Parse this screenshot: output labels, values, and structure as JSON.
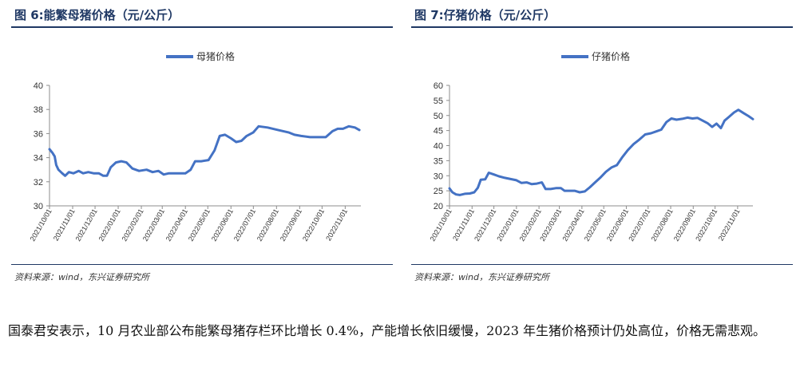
{
  "figures": [
    {
      "title": "图 6:能繁母猪价格（元/公斤）",
      "source": "资料来源：wind，东兴证券研究所",
      "chart_data": {
        "type": "line",
        "title": "图 6:能繁母猪价格（元/公斤）",
        "series": [
          {
            "name": "母猪价格",
            "color": "#4472c4",
            "points": [
              [
                "2021-10-01",
                34.7
              ],
              [
                "2021-10-05",
                34.4
              ],
              [
                "2021-10-08",
                34.1
              ],
              [
                "2021-10-10",
                33.4
              ],
              [
                "2021-10-13",
                33.0
              ],
              [
                "2021-10-18",
                32.7
              ],
              [
                "2021-10-22",
                32.5
              ],
              [
                "2021-10-27",
                32.8
              ],
              [
                "2021-11-02",
                32.7
              ],
              [
                "2021-11-09",
                32.9
              ],
              [
                "2021-11-15",
                32.7
              ],
              [
                "2021-11-22",
                32.8
              ],
              [
                "2021-11-29",
                32.7
              ],
              [
                "2021-12-06",
                32.7
              ],
              [
                "2021-12-12",
                32.5
              ],
              [
                "2021-12-17",
                32.5
              ],
              [
                "2021-12-22",
                33.2
              ],
              [
                "2021-12-29",
                33.6
              ],
              [
                "2022-01-05",
                33.7
              ],
              [
                "2022-01-12",
                33.6
              ],
              [
                "2022-01-20",
                33.1
              ],
              [
                "2022-01-29",
                32.9
              ],
              [
                "2022-02-08",
                33.0
              ],
              [
                "2022-02-16",
                32.8
              ],
              [
                "2022-02-24",
                32.9
              ],
              [
                "2022-03-03",
                32.6
              ],
              [
                "2022-03-10",
                32.7
              ],
              [
                "2022-03-20",
                32.7
              ],
              [
                "2022-04-01",
                32.7
              ],
              [
                "2022-04-08",
                33.0
              ],
              [
                "2022-04-14",
                33.7
              ],
              [
                "2022-04-22",
                33.7
              ],
              [
                "2022-05-02",
                33.8
              ],
              [
                "2022-05-10",
                34.6
              ],
              [
                "2022-05-17",
                35.8
              ],
              [
                "2022-05-24",
                35.9
              ],
              [
                "2022-06-01",
                35.6
              ],
              [
                "2022-06-08",
                35.3
              ],
              [
                "2022-06-15",
                35.4
              ],
              [
                "2022-06-22",
                35.8
              ],
              [
                "2022-07-01",
                36.1
              ],
              [
                "2022-07-08",
                36.6
              ],
              [
                "2022-07-20",
                36.5
              ],
              [
                "2022-08-03",
                36.3
              ],
              [
                "2022-08-17",
                36.1
              ],
              [
                "2022-08-25",
                35.9
              ],
              [
                "2022-09-03",
                35.8
              ],
              [
                "2022-09-15",
                35.7
              ],
              [
                "2022-09-25",
                35.7
              ],
              [
                "2022-10-06",
                35.7
              ],
              [
                "2022-10-15",
                36.2
              ],
              [
                "2022-10-22",
                36.4
              ],
              [
                "2022-10-29",
                36.4
              ],
              [
                "2022-11-06",
                36.6
              ],
              [
                "2022-11-14",
                36.5
              ],
              [
                "2022-11-20",
                36.3
              ]
            ]
          }
        ],
        "x_ticks": [
          "2021/10/01",
          "2021/11/01",
          "2021/12/01",
          "2022/01/01",
          "2022/02/01",
          "2022/03/01",
          "2022/04/01",
          "2022/05/01",
          "2022/06/01",
          "2022/07/01",
          "2022/08/01",
          "2022/09/01",
          "2022/10/01",
          "2022/11/01"
        ],
        "y_ticks": [
          30,
          32,
          34,
          36,
          38,
          40
        ],
        "ylim": [
          30,
          40
        ],
        "xlim": [
          "2021-10-01",
          "2022-11-22"
        ],
        "legend_position": "top-center",
        "grid": false
      }
    },
    {
      "title": "图 7:仔猪价格（元/公斤）",
      "source": "资料来源：wind，东兴证券研究所",
      "chart_data": {
        "type": "line",
        "title": "图 7:仔猪价格（元/公斤）",
        "series": [
          {
            "name": "仔猪价格",
            "color": "#4472c4",
            "points": [
              [
                "2021-10-01",
                25.8
              ],
              [
                "2021-10-05",
                24.5
              ],
              [
                "2021-10-10",
                23.8
              ],
              [
                "2021-10-15",
                23.6
              ],
              [
                "2021-10-22",
                24.0
              ],
              [
                "2021-10-29",
                24.1
              ],
              [
                "2021-11-04",
                24.5
              ],
              [
                "2021-11-09",
                26.0
              ],
              [
                "2021-11-13",
                28.7
              ],
              [
                "2021-11-19",
                28.8
              ],
              [
                "2021-11-24",
                31.0
              ],
              [
                "2021-12-01",
                30.4
              ],
              [
                "2021-12-08",
                29.8
              ],
              [
                "2021-12-16",
                29.3
              ],
              [
                "2021-12-24",
                28.9
              ],
              [
                "2022-01-01",
                28.5
              ],
              [
                "2022-01-08",
                27.6
              ],
              [
                "2022-01-15",
                27.8
              ],
              [
                "2022-01-22",
                27.2
              ],
              [
                "2022-01-29",
                27.4
              ],
              [
                "2022-02-05",
                27.8
              ],
              [
                "2022-02-10",
                25.6
              ],
              [
                "2022-02-17",
                25.6
              ],
              [
                "2022-02-25",
                25.9
              ],
              [
                "2022-03-03",
                25.9
              ],
              [
                "2022-03-08",
                25.0
              ],
              [
                "2022-03-15",
                25.0
              ],
              [
                "2022-03-22",
                25.0
              ],
              [
                "2022-03-29",
                24.5
              ],
              [
                "2022-04-05",
                24.8
              ],
              [
                "2022-04-12",
                26.2
              ],
              [
                "2022-04-19",
                27.8
              ],
              [
                "2022-04-26",
                29.3
              ],
              [
                "2022-05-04",
                31.3
              ],
              [
                "2022-05-12",
                32.8
              ],
              [
                "2022-05-19",
                33.5
              ],
              [
                "2022-05-26",
                36.0
              ],
              [
                "2022-06-03",
                38.5
              ],
              [
                "2022-06-11",
                40.5
              ],
              [
                "2022-06-19",
                42.0
              ],
              [
                "2022-06-27",
                43.7
              ],
              [
                "2022-07-05",
                44.1
              ],
              [
                "2022-07-13",
                44.8
              ],
              [
                "2022-07-19",
                45.3
              ],
              [
                "2022-07-26",
                47.8
              ],
              [
                "2022-08-02",
                49.0
              ],
              [
                "2022-08-09",
                48.6
              ],
              [
                "2022-08-17",
                48.9
              ],
              [
                "2022-08-24",
                49.3
              ],
              [
                "2022-08-31",
                49.0
              ],
              [
                "2022-09-07",
                49.2
              ],
              [
                "2022-09-14",
                48.3
              ],
              [
                "2022-09-21",
                47.4
              ],
              [
                "2022-09-27",
                46.2
              ],
              [
                "2022-10-03",
                47.3
              ],
              [
                "2022-10-09",
                45.8
              ],
              [
                "2022-10-14",
                48.3
              ],
              [
                "2022-10-20",
                49.5
              ],
              [
                "2022-10-27",
                51.0
              ],
              [
                "2022-11-02",
                51.9
              ],
              [
                "2022-11-09",
                50.8
              ],
              [
                "2022-11-16",
                49.8
              ],
              [
                "2022-11-22",
                48.8
              ]
            ]
          }
        ],
        "x_ticks": [
          "2021/10/01",
          "2021/11/01",
          "2021/12/01",
          "2022/01/01",
          "2022/02/01",
          "2022/03/01",
          "2022/04/01",
          "2022/05/01",
          "2022/06/01",
          "2022/07/01",
          "2022/08/01",
          "2022/09/01",
          "2022/10/01",
          "2022/11/01"
        ],
        "y_ticks": [
          20,
          25,
          30,
          35,
          40,
          45,
          50,
          55,
          60
        ],
        "ylim": [
          20,
          60
        ],
        "xlim": [
          "2021-10-01",
          "2022-11-22"
        ],
        "legend_position": "top-center",
        "grid": false
      }
    }
  ],
  "caption": "国泰君安表示，10 月农业部公布能繁母猪存栏环比增长 0.4%，产能增长依旧缓慢，2023 年生猪价格预计仍处高位，价格无需悲观。"
}
